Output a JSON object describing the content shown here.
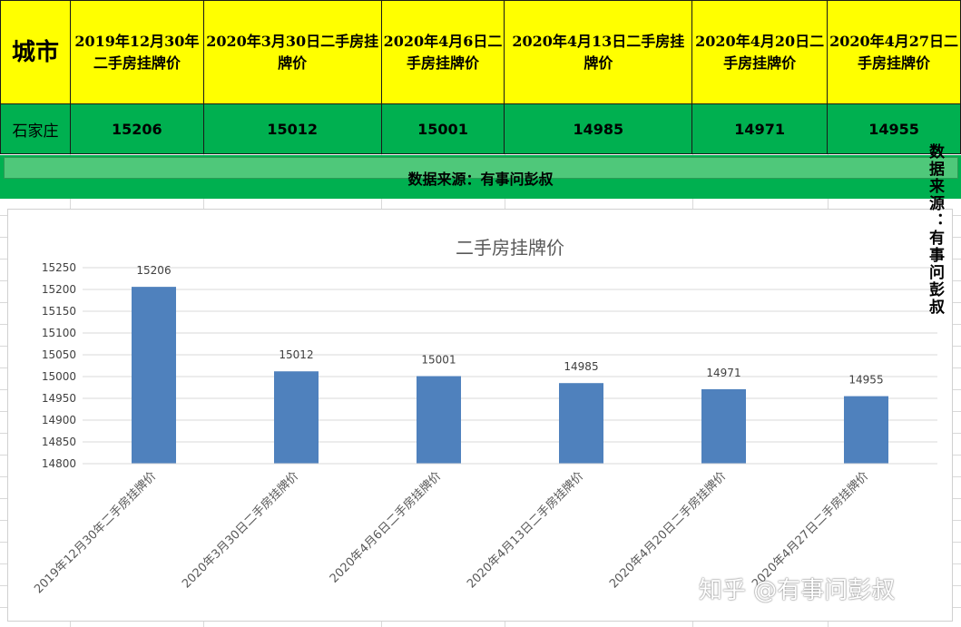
{
  "table": {
    "header_city": "城市",
    "headers": [
      "2019年12月30年二手房挂牌价",
      "2020年3月30日二手房挂牌价",
      "2020年4月6日二手房挂牌价",
      "2020年4月13日二手房挂牌价",
      "2020年4月20日二手房挂牌价",
      "2020年4月27日二手房挂牌价"
    ],
    "city": "石家庄",
    "values": [
      "15206",
      "15012",
      "15001",
      "14985",
      "14971",
      "14955"
    ]
  },
  "source_note": "数据来源：有事问彭叔",
  "vertical_note": "数据来源：有事问彭叔",
  "watermark": "知乎 @有事问彭叔",
  "colors": {
    "header_bg": "#ffff00",
    "row_bg": "#00b050",
    "bar": "#4f81bd"
  },
  "chart_data": {
    "type": "bar",
    "title": "二手房挂牌价",
    "categories": [
      "2019年12月30年二手房挂牌价",
      "2020年3月30日二手房挂牌价",
      "2020年4月6日二手房挂牌价",
      "2020年4月13日二手房挂牌价",
      "2020年4月20日二手房挂牌价",
      "2020年4月27日二手房挂牌价"
    ],
    "values": [
      15206,
      15012,
      15001,
      14985,
      14971,
      14955
    ],
    "yticks": [
      "14800",
      "14850",
      "14900",
      "14950",
      "15000",
      "15050",
      "15100",
      "15150",
      "15200",
      "15250"
    ],
    "ylim": [
      14800,
      15250
    ],
    "grid": true,
    "legend": "none"
  }
}
